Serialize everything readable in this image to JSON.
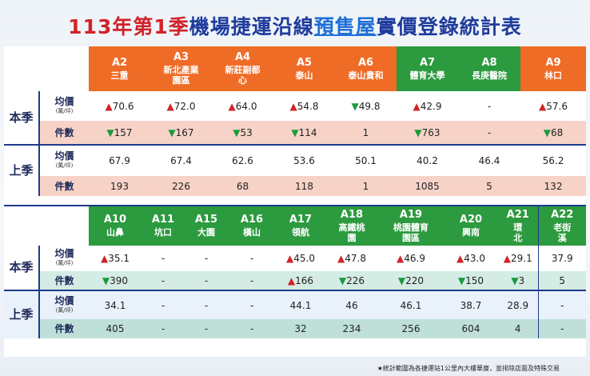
{
  "title": {
    "p1": "113年第1季",
    "p2": "機場捷運沿線",
    "p3": "預售屋",
    "p4": "實價登錄統計表"
  },
  "labels": {
    "this": "本季",
    "last": "上季",
    "avg": "均價",
    "unit": "(萬/坪)",
    "count": "件數"
  },
  "top": {
    "stations": [
      {
        "code": "A2",
        "name": "三重",
        "color": "orange"
      },
      {
        "code": "A3",
        "name": "新北產業園區",
        "color": "orange"
      },
      {
        "code": "A4",
        "name": "新莊副都心",
        "color": "orange"
      },
      {
        "code": "A5",
        "name": "泰山",
        "color": "orange"
      },
      {
        "code": "A6",
        "name": "泰山貴和",
        "color": "orange"
      },
      {
        "code": "A7",
        "name": "體育大學",
        "color": "green"
      },
      {
        "code": "A8",
        "name": "長庚醫院",
        "color": "green"
      },
      {
        "code": "A9",
        "name": "林口",
        "color": "orange"
      }
    ],
    "this_avg": [
      {
        "a": "▲",
        "v": "70.6"
      },
      {
        "a": "▲",
        "v": "72.0"
      },
      {
        "a": "▲",
        "v": "64.0"
      },
      {
        "a": "▲",
        "v": "54.8"
      },
      {
        "a": "▼",
        "v": "49.8"
      },
      {
        "a": "▲",
        "v": "42.9"
      },
      {
        "a": "",
        "v": "-"
      },
      {
        "a": "▲",
        "v": "57.6"
      }
    ],
    "this_cnt": [
      {
        "a": "▼",
        "v": "157"
      },
      {
        "a": "▼",
        "v": "167"
      },
      {
        "a": "▼",
        "v": "53"
      },
      {
        "a": "▼",
        "v": "114"
      },
      {
        "a": "",
        "v": "1"
      },
      {
        "a": "▼",
        "v": "763"
      },
      {
        "a": "",
        "v": "-"
      },
      {
        "a": "▼",
        "v": "68"
      }
    ],
    "last_avg": [
      "67.9",
      "67.4",
      "62.6",
      "53.6",
      "50.1",
      "40.2",
      "46.4",
      "56.2"
    ],
    "last_cnt": [
      "193",
      "226",
      "68",
      "118",
      "1",
      "1085",
      "5",
      "132"
    ]
  },
  "bottom": {
    "stations": [
      {
        "code": "A10",
        "name": "山鼻"
      },
      {
        "code": "A11",
        "name": "坑口"
      },
      {
        "code": "A15",
        "name": "大園"
      },
      {
        "code": "A16",
        "name": "橫山"
      },
      {
        "code": "A17",
        "name": "領航"
      },
      {
        "code": "A18",
        "name": "高鐵桃園"
      },
      {
        "code": "A19",
        "name": "桃園體育園區"
      },
      {
        "code": "A20",
        "name": "興南"
      },
      {
        "code": "A21",
        "name": "環北"
      },
      {
        "code": "A22",
        "name": "老街溪"
      }
    ],
    "this_avg": [
      {
        "a": "▲",
        "v": "35.1"
      },
      {
        "a": "",
        "v": "-"
      },
      {
        "a": "",
        "v": "-"
      },
      {
        "a": "",
        "v": "-"
      },
      {
        "a": "▲",
        "v": "45.0"
      },
      {
        "a": "▲",
        "v": "47.8"
      },
      {
        "a": "▲",
        "v": "46.9"
      },
      {
        "a": "▲",
        "v": "43.0"
      },
      {
        "a": "▲",
        "v": "29.1"
      },
      {
        "a": "",
        "v": "37.9"
      }
    ],
    "this_cnt": [
      {
        "a": "▼",
        "v": "390"
      },
      {
        "a": "",
        "v": "-"
      },
      {
        "a": "",
        "v": "-"
      },
      {
        "a": "",
        "v": "-"
      },
      {
        "a": "▲",
        "v": "166"
      },
      {
        "a": "▼",
        "v": "226"
      },
      {
        "a": "▼",
        "v": "220"
      },
      {
        "a": "▼",
        "v": "150"
      },
      {
        "a": "▼",
        "v": "3"
      },
      {
        "a": "",
        "v": "5"
      }
    ],
    "last_avg": [
      "34.1",
      "-",
      "-",
      "-",
      "44.1",
      "46",
      "46.1",
      "38.7",
      "28.9",
      "-"
    ],
    "last_cnt": [
      "405",
      "-",
      "-",
      "-",
      "32",
      "234",
      "256",
      "604",
      "4",
      "-"
    ]
  },
  "footnote": "★統計範圍為各捷運站1公里內大樓華廈，並排除店面及特殊交易",
  "colors": {
    "orange": "#ef6c27",
    "green": "#2c9a3e",
    "up": "#d1232a",
    "down": "#1a9a3c",
    "title_red": "#d1232a",
    "title_blue": "#1f3b9c"
  }
}
